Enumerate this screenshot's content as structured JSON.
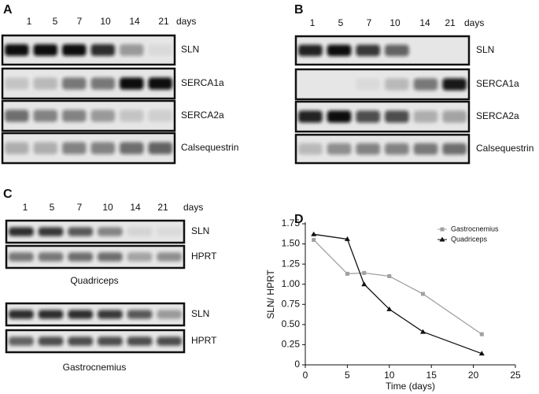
{
  "panel_a": {
    "letter": "A",
    "lanes": [
      "1",
      "5",
      "7",
      "10",
      "14",
      "21"
    ],
    "unit": "days",
    "blots": [
      "SLN",
      "SERCA1a",
      "SERCA2a",
      "Calsequestrin"
    ]
  },
  "panel_b": {
    "letter": "B",
    "lanes": [
      "1",
      "5",
      "7",
      "10",
      "14",
      "21"
    ],
    "unit": "days",
    "blots": [
      "SLN",
      "SERCA1a",
      "SERCA2a",
      "Calsequestrin"
    ]
  },
  "panel_c": {
    "letter": "C",
    "lanes": [
      "1",
      "5",
      "7",
      "10",
      "14",
      "21"
    ],
    "unit": "days",
    "groups": [
      {
        "blots": [
          "SLN",
          "HPRT"
        ],
        "caption": "Quadriceps"
      },
      {
        "blots": [
          "SLN",
          "HPRT"
        ],
        "caption": "Gastrocnemius"
      }
    ]
  },
  "chart_data": {
    "type": "line",
    "panel_label": "D",
    "xlabel": "Time (days)",
    "ylabel": "SLN/ HPRT",
    "x": [
      1,
      5,
      7,
      10,
      14,
      21
    ],
    "series": [
      {
        "name": "Gastrocnemius",
        "color": "#a0a0a0",
        "marker": "square",
        "values": [
          1.55,
          1.13,
          1.14,
          1.1,
          0.88,
          0.38
        ]
      },
      {
        "name": "Quadriceps",
        "color": "#111111",
        "marker": "triangle",
        "values": [
          1.62,
          1.56,
          1.0,
          0.69,
          0.41,
          0.14
        ]
      }
    ],
    "xlim": [
      0,
      25
    ],
    "xticks": [
      0,
      5,
      10,
      15,
      20,
      25
    ],
    "ylim": [
      0,
      1.75
    ],
    "yticks": [
      0,
      0.25,
      {
        "value": 0.5,
        "label": "0.50"
      },
      0.75,
      {
        "value": 1,
        "label": "1.00"
      },
      1.25,
      {
        "value": 1.5,
        "label": "1.50"
      },
      1.75
    ],
    "legend": "upper right",
    "grid": false
  }
}
